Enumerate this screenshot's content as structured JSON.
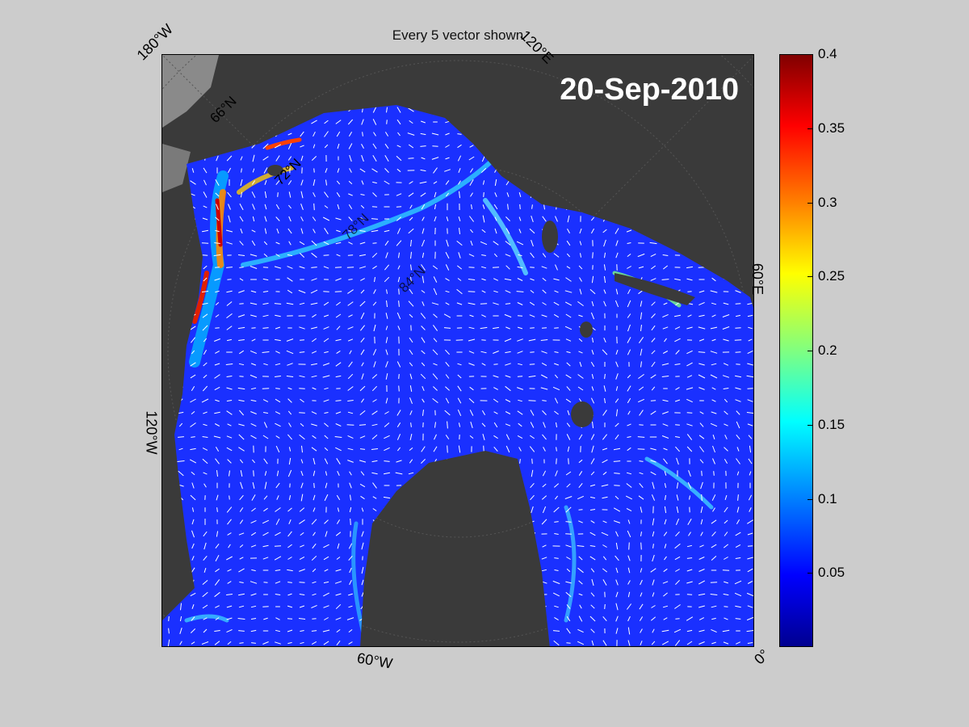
{
  "title": "Every 5 vector shown",
  "date": "20-Sep-2010",
  "longitude_labels": {
    "top_left": "180°W",
    "top_right": "120°E",
    "right": "60°E",
    "bottom_right": "0°",
    "bottom": "60°W",
    "left": "120°W"
  },
  "latitude_labels": [
    "66°N",
    "72°N",
    "78°N",
    "84°N"
  ],
  "colorbar": {
    "colormap": "jet",
    "min": 0,
    "max": 0.4,
    "tick_labels": [
      "0.4",
      "0.35",
      "0.3",
      "0.25",
      "0.2",
      "0.15",
      "0.1",
      "0.05"
    ],
    "tick_values": [
      0.4,
      0.35,
      0.3,
      0.25,
      0.2,
      0.15,
      0.1,
      0.05
    ]
  },
  "colors": {
    "background": "#cccccc",
    "land": "#3a3a3a",
    "land_light": "#8a8a8a",
    "sea_base": "#1428ff",
    "vector": "#ffffff",
    "high_speed": "#e01010"
  }
}
